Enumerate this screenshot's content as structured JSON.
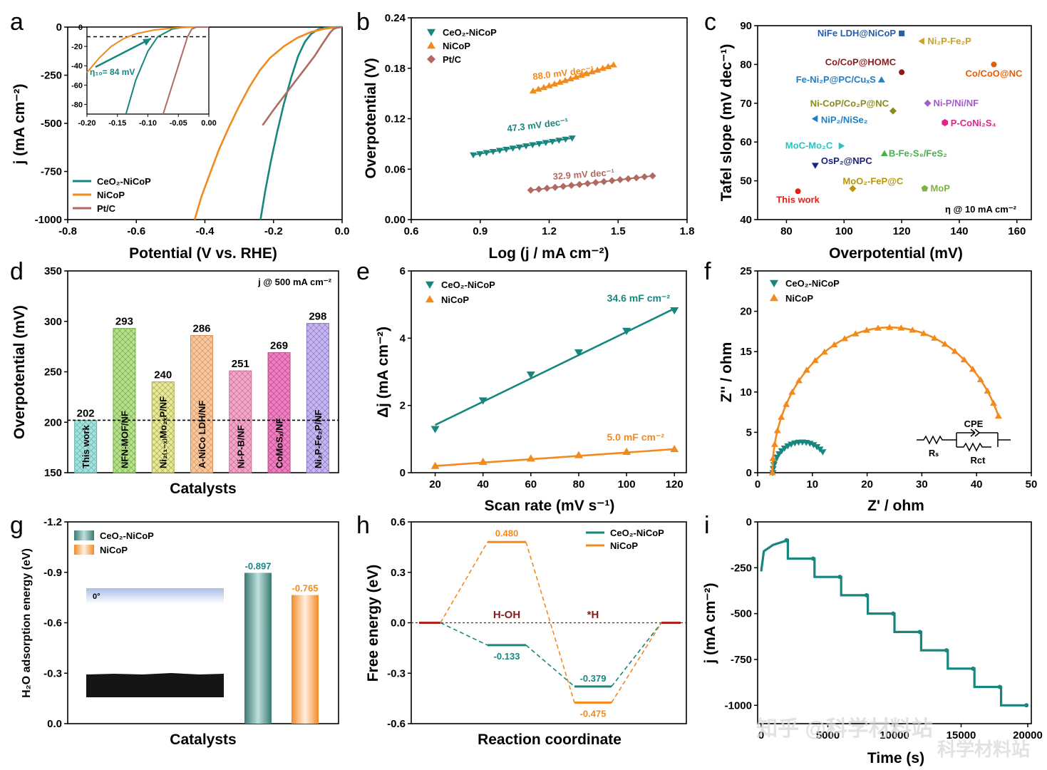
{
  "colors": {
    "teal": "#17867f",
    "orange": "#f28a1e",
    "brown": "#b06a62",
    "darkred": "#8b1a1a",
    "axis": "#000000"
  },
  "watermark": "知乎 @科学材料站",
  "watermark_weibo": "科学材料站",
  "panels": {
    "a": {
      "label": "a"
    },
    "b": {
      "label": "b"
    },
    "c": {
      "label": "c"
    },
    "d": {
      "label": "d"
    },
    "e": {
      "label": "e"
    },
    "f": {
      "label": "f"
    },
    "g": {
      "label": "g"
    },
    "h": {
      "label": "h"
    },
    "i": {
      "label": "i"
    }
  },
  "chart_data": [
    {
      "id": "a",
      "type": "line",
      "xlabel": "Potential (V vs. RHE)",
      "ylabel": "j (mA cm⁻²)",
      "xlim": [
        -0.8,
        0.0
      ],
      "ylim": [
        -1000,
        0
      ],
      "xticks": [
        -0.8,
        -0.6,
        -0.4,
        -0.2,
        0.0
      ],
      "xticklabels": [
        "-0.8",
        "-0.6",
        "-0.4",
        "-0.2",
        "0.0"
      ],
      "yticks": [
        0,
        -250,
        -500,
        -750,
        -1000
      ],
      "yticklabels": [
        "0",
        "-250",
        "-500",
        "-750",
        "-1000"
      ],
      "series": [
        {
          "name": "CeO₂-NiCoP",
          "color": "#17867f",
          "x": [
            -0.238,
            -0.224,
            -0.208,
            -0.19,
            -0.17,
            -0.148,
            -0.128,
            -0.108,
            -0.09,
            -0.07,
            -0.05,
            -0.03,
            -0.015,
            0.0
          ],
          "y": [
            -1000,
            -850,
            -700,
            -550,
            -400,
            -260,
            -150,
            -75,
            -35,
            -12,
            -4,
            -1,
            0,
            0
          ]
        },
        {
          "name": "NiCoP",
          "color": "#f28a1e",
          "x": [
            -0.43,
            -0.41,
            -0.385,
            -0.36,
            -0.33,
            -0.3,
            -0.27,
            -0.24,
            -0.21,
            -0.17,
            -0.13,
            -0.09,
            -0.05,
            -0.02,
            0.0
          ],
          "y": [
            -1000,
            -880,
            -760,
            -640,
            -520,
            -410,
            -310,
            -225,
            -160,
            -100,
            -55,
            -25,
            -8,
            -2,
            0
          ]
        },
        {
          "name": "Pt/C",
          "color": "#b06a62",
          "x": [
            -0.232,
            -0.2,
            -0.17,
            -0.14,
            -0.11,
            -0.08,
            -0.06,
            -0.045,
            -0.035,
            -0.025,
            -0.015,
            0.0
          ],
          "y": [
            -510,
            -430,
            -360,
            -290,
            -220,
            -150,
            -95,
            -55,
            -28,
            -10,
            -3,
            0
          ]
        }
      ],
      "inset": {
        "xlim": [
          -0.2,
          0.0
        ],
        "ylim": [
          -90,
          0
        ],
        "xticklabels": [
          "-0.20",
          "-0.15",
          "-0.10",
          "-0.05",
          "0.00"
        ],
        "yticklabels": [
          "0",
          "-20",
          "-40",
          "-60",
          "-80"
        ],
        "dashed_y": -10,
        "annotation": "η₁₀= 84 mV"
      }
    },
    {
      "id": "b",
      "type": "scatter",
      "xlabel": "Log (j / mA cm⁻²)",
      "ylabel": "Overpotential (V)",
      "xlim": [
        0.6,
        1.8
      ],
      "ylim": [
        0.0,
        0.24
      ],
      "xticklabels": [
        "0.6",
        "0.9",
        "1.2",
        "1.5",
        "1.8"
      ],
      "yticklabels": [
        "0.00",
        "0.06",
        "0.12",
        "0.18",
        "0.24"
      ],
      "series": [
        {
          "name": "CeO₂-NiCoP",
          "color": "#17867f",
          "marker": "triangle-down",
          "x_range": [
            0.87,
            1.3
          ],
          "y_range": [
            0.077,
            0.097
          ],
          "slope_label": "47.3 mV dec⁻¹"
        },
        {
          "name": "NiCoP",
          "color": "#f28a1e",
          "marker": "triangle-up",
          "x_range": [
            1.13,
            1.48
          ],
          "y_range": [
            0.153,
            0.184
          ],
          "slope_label": "88.0 mV dec⁻¹"
        },
        {
          "name": "Pt/C",
          "color": "#b06a62",
          "marker": "diamond",
          "x_range": [
            1.12,
            1.65
          ],
          "y_range": [
            0.035,
            0.052
          ],
          "slope_label": "32.9 mV dec⁻¹"
        }
      ]
    },
    {
      "id": "c",
      "type": "scatter",
      "xlabel": "Overpotential (mV)",
      "ylabel": "Tafel slope (mV dec⁻¹)",
      "xlim": [
        70,
        165
      ],
      "ylim": [
        40,
        90
      ],
      "xticklabels": [
        "80",
        "100",
        "120",
        "140",
        "160"
      ],
      "yticklabels": [
        "40",
        "50",
        "60",
        "70",
        "80",
        "90"
      ],
      "note": "η @ 10 mA cm⁻²",
      "points": [
        {
          "label": "NiFe LDH@NiCoP",
          "x": 120,
          "y": 88,
          "color": "#2a5ca8",
          "marker": "square"
        },
        {
          "label": "Ni₂P-Fe₂P",
          "x": 127,
          "y": 86,
          "color": "#c8a02a",
          "marker": "triangle-left"
        },
        {
          "label": "Co/CoP@HOMC",
          "x": 120,
          "y": 78,
          "color": "#8b1a1a",
          "marker": "circle"
        },
        {
          "label": "Co/CoO@NC",
          "x": 152,
          "y": 80,
          "color": "#e65c00",
          "marker": "circle"
        },
        {
          "label": "Fe-Ni₂P@PC/CuₓS",
          "x": 113,
          "y": 76,
          "color": "#1f7fc4",
          "marker": "triangle-up"
        },
        {
          "label": "Ni-CoP/Co₂P@NC",
          "x": 117,
          "y": 68,
          "color": "#8a8a1a",
          "marker": "diamond"
        },
        {
          "label": "Ni-P/Ni/NF",
          "x": 129,
          "y": 70,
          "color": "#a35cc8",
          "marker": "diamond"
        },
        {
          "label": "NiP₂/NiSe₂",
          "x": 90,
          "y": 66,
          "color": "#1f7fc4",
          "marker": "triangle-left"
        },
        {
          "label": "P-CoNi₂S₄",
          "x": 135,
          "y": 65,
          "color": "#e6208a",
          "marker": "hexagon"
        },
        {
          "label": "MoC-Mo₂C",
          "x": 99,
          "y": 59,
          "color": "#28c4c4",
          "marker": "triangle-right"
        },
        {
          "label": "B-Fe₇S₈/FeS₂",
          "x": 114,
          "y": 57,
          "color": "#4caf50",
          "marker": "triangle-up"
        },
        {
          "label": "OsP₂@NPC",
          "x": 90,
          "y": 54,
          "color": "#1a237e",
          "marker": "triangle-down"
        },
        {
          "label": "MoO₂-FeP@C",
          "x": 103,
          "y": 48,
          "color": "#b8960c",
          "marker": "diamond"
        },
        {
          "label": "MoP",
          "x": 128,
          "y": 48,
          "color": "#7cb342",
          "marker": "pentagon"
        },
        {
          "label": "This work",
          "x": 84,
          "y": 47.3,
          "color": "#e0201a",
          "marker": "circle"
        }
      ]
    },
    {
      "id": "d",
      "type": "bar",
      "xlabel": "Catalysts",
      "ylabel": "Overpotential (mV)",
      "ylim": [
        150,
        350
      ],
      "yticklabels": [
        "150",
        "200",
        "250",
        "300",
        "350"
      ],
      "note": "j @ 500 mA cm⁻²",
      "categories": [
        "This work",
        "NFN-MOF/NF",
        "Ni₂₍₁₋ₓ₎Mo₂ₓP/NF",
        "A-NiCo LDH/NF",
        "Ni-P-B/NF",
        "CoMoSₓ/NF",
        "Ni₂P-Fe₂P/NF"
      ],
      "values": [
        202,
        293,
        240,
        286,
        251,
        269,
        298
      ],
      "value_labels": [
        "202",
        "293",
        "240",
        "286",
        "251",
        "269",
        "298"
      ],
      "bar_colors": [
        "#a8e0dc",
        "#b8e090",
        "#e8e8a0",
        "#f5c8a0",
        "#f0a8c8",
        "#ec80c0",
        "#c8b8f0"
      ],
      "bar_edges": [
        "#5ab8b0",
        "#6cae3c",
        "#a8a840",
        "#d89058",
        "#d06a98",
        "#c04890",
        "#8a74c8"
      ],
      "dashed_y": 202
    },
    {
      "id": "e",
      "type": "scatter",
      "xlabel": "Scan rate (mV s⁻¹)",
      "ylabel": "Δj (mA cm⁻²)",
      "xlim": [
        10,
        125
      ],
      "ylim": [
        0,
        6
      ],
      "xticklabels": [
        "20",
        "40",
        "60",
        "80",
        "100",
        "120"
      ],
      "yticklabels": [
        "0",
        "2",
        "4",
        "6"
      ],
      "series": [
        {
          "name": "CeO₂-NiCoP",
          "color": "#17867f",
          "x": [
            20,
            40,
            60,
            80,
            100,
            120
          ],
          "y": [
            1.3,
            2.15,
            2.92,
            3.58,
            4.22,
            4.83
          ],
          "fit": [
            1.42,
            4.88
          ],
          "label": "34.6 mF cm⁻²"
        },
        {
          "name": "NiCoP",
          "color": "#f28a1e",
          "x": [
            20,
            40,
            60,
            80,
            100,
            120
          ],
          "y": [
            0.2,
            0.32,
            0.42,
            0.52,
            0.62,
            0.7
          ],
          "fit": [
            0.2,
            0.7
          ],
          "label": "5.0 mF cm⁻²"
        }
      ]
    },
    {
      "id": "f",
      "type": "scatter",
      "xlabel": "Z' / ohm",
      "ylabel": "Z'' / ohm",
      "xlim": [
        0,
        50
      ],
      "ylim": [
        0,
        25
      ],
      "xticklabels": [
        "0",
        "10",
        "20",
        "30",
        "40",
        "50"
      ],
      "yticklabels": [
        "0",
        "5",
        "10",
        "15",
        "20",
        "25"
      ],
      "series": [
        {
          "name": "CeO₂-NiCoP",
          "color": "#17867f",
          "rs": 2.8,
          "rct": 10.5,
          "peak": 3.8,
          "end_x": 11.9,
          "end_y": 1.6
        },
        {
          "name": "NiCoP",
          "color": "#f28a1e",
          "rs": 2.7,
          "rct": 43.0,
          "peak": 18.0,
          "end_x": 44.0,
          "end_y": 8.0
        }
      ],
      "circuit": {
        "cpe": "CPE",
        "rs": "Rₛ",
        "rct": "Rct"
      }
    },
    {
      "id": "g",
      "type": "bar",
      "xlabel": "Catalysts",
      "ylabel": "H₂O adsorption energy (eV)",
      "ylim": [
        0.0,
        -1.2
      ],
      "yticklabels": [
        "0.0",
        "-0.3",
        "-0.6",
        "-0.9",
        "-1.2"
      ],
      "categories": [
        "CeO₂-NiCoP",
        "NiCoP"
      ],
      "values": [
        -0.897,
        -0.765
      ],
      "value_labels": [
        "-0.897",
        "-0.765"
      ],
      "inset_angle_label": "0°"
    },
    {
      "id": "h",
      "type": "line",
      "xlabel": "Reaction coordinate",
      "ylabel": "Free energy (eV)",
      "ylim": [
        -0.6,
        0.6
      ],
      "yticklabels": [
        "0.6",
        "0.3",
        "0.0",
        "-0.3",
        "-0.6"
      ],
      "state_labels": [
        "H-OH",
        "*H"
      ],
      "series": [
        {
          "name": "CeO₂-NiCoP",
          "color": "#17867f",
          "levels": [
            0.0,
            -0.133,
            -0.379,
            0.0
          ],
          "labels": [
            "-0.133",
            "-0.379"
          ]
        },
        {
          "name": "NiCoP",
          "color": "#f28a1e",
          "levels": [
            0.0,
            0.48,
            -0.475,
            0.0
          ],
          "labels": [
            "0.480",
            "-0.475"
          ]
        }
      ]
    },
    {
      "id": "i",
      "type": "line",
      "xlabel": "Time (s)",
      "ylabel": "j (mA cm⁻²)",
      "xlim": [
        0,
        20000
      ],
      "ylim": [
        -1100,
        0
      ],
      "xticklabels": [
        "0",
        "5000",
        "10000",
        "15000",
        "20000"
      ],
      "yticklabels": [
        "0",
        "-250",
        "-500",
        "-750",
        "-1000"
      ],
      "series": [
        {
          "name": "CeO₂-NiCoP",
          "color": "#17867f",
          "steps": [
            -100,
            -200,
            -300,
            -400,
            -500,
            -600,
            -700,
            -800,
            -900,
            -1000
          ],
          "step_duration": 2000
        }
      ]
    }
  ]
}
